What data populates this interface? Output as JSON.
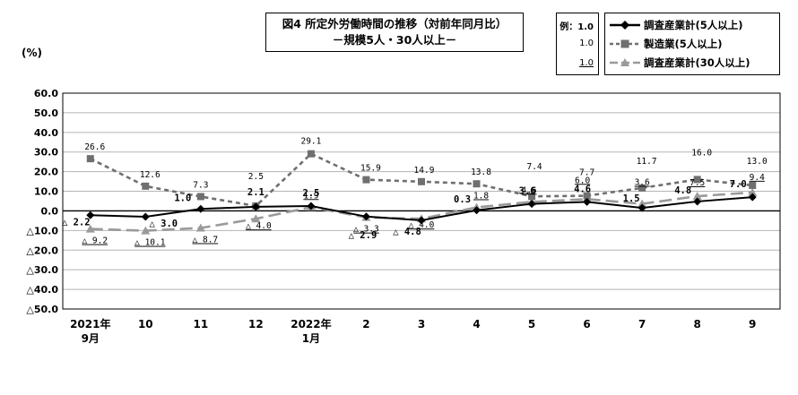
{
  "chart_data": {
    "type": "line",
    "title_lines": [
      "図4  所定外労働時間の推移（対前年同月比）",
      "－規模5人・30人以上－"
    ],
    "ylabel": "(%)",
    "ylim": [
      -50,
      60
    ],
    "ytick_values": [
      60,
      50,
      40,
      30,
      20,
      10,
      0,
      -10,
      -20,
      -30,
      -40,
      -50
    ],
    "ytick_labels": [
      "60.0",
      "50.0",
      "40.0",
      "30.0",
      "20.0",
      "10.0",
      "0.0",
      "△10.0",
      "△20.0",
      "△30.0",
      "△40.0",
      "△50.0"
    ],
    "grid": true,
    "legend_position": "top-right",
    "categories": [
      [
        "2021年",
        "9月"
      ],
      [
        "10"
      ],
      [
        "11"
      ],
      [
        "12"
      ],
      [
        "2022年",
        "1月"
      ],
      [
        "2"
      ],
      [
        "3"
      ],
      [
        "4"
      ],
      [
        "5"
      ],
      [
        "6"
      ],
      [
        "7"
      ],
      [
        "8"
      ],
      [
        "9"
      ]
    ],
    "example_box": {
      "prefix": "例：",
      "items": [
        "1.0",
        "1.0",
        "1.0"
      ]
    },
    "series": [
      {
        "name": "調査産業計(5人以上)",
        "color": "#000000",
        "dash": "solid",
        "marker": "diamond",
        "label_style": "bold",
        "values": [
          -2.2,
          -3.0,
          1.0,
          2.1,
          2.5,
          -2.9,
          -4.8,
          0.3,
          3.6,
          4.6,
          1.5,
          4.8,
          7.0
        ],
        "labels": [
          "△ 2.2",
          "△ 3.0",
          "1.0",
          "2.1",
          "2.5",
          "△ 2.9",
          "△ 4.8",
          "0.3",
          "3.6",
          "4.6",
          "1.5",
          "4.8",
          "7.0"
        ]
      },
      {
        "name": "製造業(5人以上)",
        "color": "#6f6f6f",
        "dash": "short",
        "marker": "square",
        "label_style": "plain",
        "values": [
          26.6,
          12.6,
          7.3,
          2.5,
          29.1,
          15.9,
          14.9,
          13.8,
          7.4,
          7.7,
          11.7,
          16.0,
          13.0
        ],
        "labels": [
          "26.6",
          "12.6",
          "7.3",
          "2.5",
          "29.1",
          "15.9",
          "14.9",
          "13.8",
          "7.4",
          "7.7",
          "11.7",
          "16.0",
          "13.0"
        ]
      },
      {
        "name": "調査産業計(30人以上)",
        "color": "#9a9a9a",
        "dash": "long",
        "marker": "triangle",
        "label_style": "underline",
        "values": [
          -9.2,
          -10.1,
          -8.7,
          -4.0,
          1.9,
          -3.3,
          -4.0,
          1.8,
          4.6,
          6.0,
          3.6,
          7.5,
          9.4
        ],
        "labels": [
          "△ 9.2",
          "△ 10.1",
          "△ 8.7",
          "△ 4.0",
          "1.9",
          "△ 3.3",
          "△ 4.0",
          "1.8",
          "4.6",
          "6.0",
          "3.6",
          "7.5",
          "9.4"
        ]
      }
    ]
  }
}
